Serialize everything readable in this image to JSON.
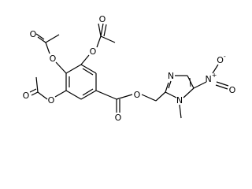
{
  "atoms": [
    {
      "label": "O"
    },
    {
      "label": "O"
    },
    {
      "label": "O"
    },
    {
      "label": "O"
    },
    {
      "label": "O"
    },
    {
      "label": "O"
    },
    {
      "label": "O"
    },
    {
      "label": "O"
    },
    {
      "label": "N"
    },
    {
      "label": "N"
    },
    {
      "label": "N",
      "charge": "+"
    },
    {
      "label": "O",
      "charge": "-"
    },
    {
      "label": "O"
    }
  ]
}
